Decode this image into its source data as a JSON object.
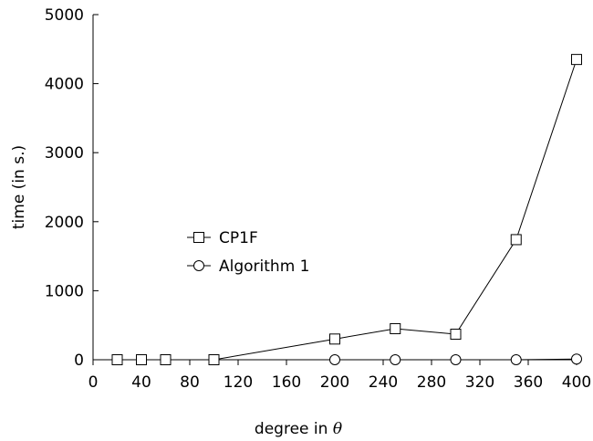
{
  "chart_data": {
    "type": "line",
    "xlabel": "degree in",
    "xlabel_symbol": "θ",
    "ylabel": "time (in s.)",
    "xlim": [
      0,
      400
    ],
    "ylim": [
      0,
      5000
    ],
    "xticks": [
      0,
      40,
      80,
      120,
      160,
      200,
      240,
      280,
      320,
      360,
      400
    ],
    "yticks": [
      0,
      1000,
      2000,
      3000,
      4000,
      5000
    ],
    "grid": false,
    "legend_position": "center-left",
    "series": [
      {
        "name": "CP1F",
        "marker": "square",
        "x": [
          20,
          40,
          60,
          100,
          200,
          250,
          300,
          350,
          400
        ],
        "y": [
          0,
          0,
          0,
          0,
          300,
          450,
          370,
          1740,
          4350
        ]
      },
      {
        "name": "Algorithm 1",
        "marker": "circle",
        "x": [
          200,
          250,
          300,
          350,
          400
        ],
        "y": [
          0,
          0,
          0,
          0,
          10
        ]
      }
    ]
  }
}
